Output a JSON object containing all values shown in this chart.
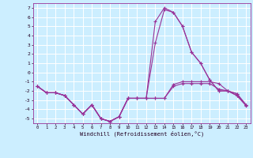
{
  "xlabel": "Windchill (Refroidissement éolien,°C)",
  "background_color": "#cceeff",
  "grid_color": "#aaddcc",
  "line_color": "#993399",
  "x_ticks": [
    0,
    1,
    2,
    3,
    4,
    5,
    6,
    7,
    8,
    9,
    10,
    11,
    12,
    13,
    14,
    15,
    16,
    17,
    18,
    19,
    20,
    21,
    22,
    23
  ],
  "ylim": [
    -5.5,
    7.5
  ],
  "xlim": [
    -0.5,
    23.5
  ],
  "yticks": [
    -5,
    -4,
    -3,
    -2,
    -1,
    0,
    1,
    2,
    3,
    4,
    5,
    6,
    7
  ],
  "series": {
    "line1": [
      -1.5,
      -2.2,
      -2.2,
      -2.5,
      -3.5,
      -4.5,
      -3.5,
      -5.0,
      -5.3,
      -4.8,
      -2.8,
      -2.8,
      -2.8,
      -2.8,
      -2.8,
      -1.5,
      -1.2,
      -1.2,
      -1.2,
      -1.2,
      -1.8,
      -2.0,
      -2.5,
      -3.5
    ],
    "line2": [
      -1.5,
      -2.2,
      -2.2,
      -2.5,
      -3.5,
      -4.5,
      -3.5,
      -5.0,
      -5.3,
      -4.8,
      -2.8,
      -2.8,
      -2.8,
      3.2,
      6.8,
      6.5,
      5.0,
      2.2,
      1.0,
      -0.8,
      -2.0,
      -2.0,
      -2.3,
      -3.5
    ],
    "line3": [
      -1.5,
      -2.2,
      -2.2,
      -2.5,
      -3.5,
      -4.5,
      -3.5,
      -5.0,
      -5.3,
      -4.8,
      -2.8,
      -2.8,
      -2.8,
      5.5,
      7.0,
      6.5,
      5.0,
      2.2,
      1.0,
      -0.8,
      -2.0,
      -2.0,
      -2.3,
      -3.5
    ],
    "line4": [
      -1.5,
      -2.2,
      -2.2,
      -2.5,
      -3.5,
      -4.5,
      -3.5,
      -5.0,
      -5.3,
      -4.8,
      -2.8,
      -2.8,
      -2.8,
      -2.8,
      -2.8,
      -1.3,
      -1.0,
      -1.0,
      -1.0,
      -1.0,
      -1.2,
      -2.0,
      -2.5,
      -3.6
    ]
  }
}
